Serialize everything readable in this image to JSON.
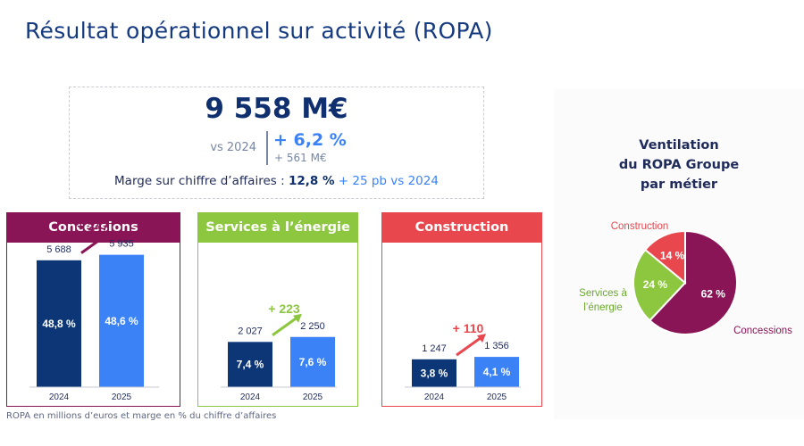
{
  "title": "Résultat opérationnel sur activité (ROPA)",
  "kpi": {
    "main_value": "9 558 M€",
    "vs_label": "vs 2024",
    "pct_change": "+ 6,2 %",
    "abs_change": "+ 561 M€",
    "margin_label": "Marge sur chiffre d’affaires : ",
    "margin_value": "12,8 %",
    "margin_delta": " + 25 pb vs 2024"
  },
  "colors": {
    "concessions": "#8a1556",
    "services": "#8dc63f",
    "construction": "#e8474e",
    "bar_2024": "#0d3677",
    "bar_2025": "#3b82f6"
  },
  "chart_data": [
    {
      "type": "bar",
      "title": "Concessions",
      "categories": [
        "2024",
        "2025"
      ],
      "values": [
        5688,
        5935
      ],
      "value_labels": [
        "5 688",
        "5 935"
      ],
      "margin_labels": [
        "48,8 %",
        "48,6 %"
      ],
      "change_label": "+ 247"
    },
    {
      "type": "bar",
      "title": "Services à l’énergie",
      "categories": [
        "2024",
        "2025"
      ],
      "values": [
        2027,
        2250
      ],
      "value_labels": [
        "2 027",
        "2 250"
      ],
      "margin_labels": [
        "7,4 %",
        "7,6 %"
      ],
      "change_label": "+ 223"
    },
    {
      "type": "bar",
      "title": "Construction",
      "categories": [
        "2024",
        "2025"
      ],
      "values": [
        1247,
        1356
      ],
      "value_labels": [
        "1 247",
        "1 356"
      ],
      "margin_labels": [
        "3,8 %",
        "4,1 %"
      ],
      "change_label": "+ 110"
    },
    {
      "type": "pie",
      "title": "Ventilation du ROPA Groupe par métier",
      "title_lines": [
        "Ventilation",
        "du ROPA Groupe",
        "par métier"
      ],
      "slices": [
        {
          "label": "Concessions",
          "value": 62,
          "value_label": "62 %"
        },
        {
          "label": "Services à l’énergie",
          "label_lines": [
            "Services à",
            "l’énergie"
          ],
          "value": 24,
          "value_label": "24 %"
        },
        {
          "label": "Construction",
          "value": 14,
          "value_label": "14 %"
        }
      ]
    }
  ],
  "footnote": "ROPA en millions d’euros et marge en % du chiffre d’affaires"
}
